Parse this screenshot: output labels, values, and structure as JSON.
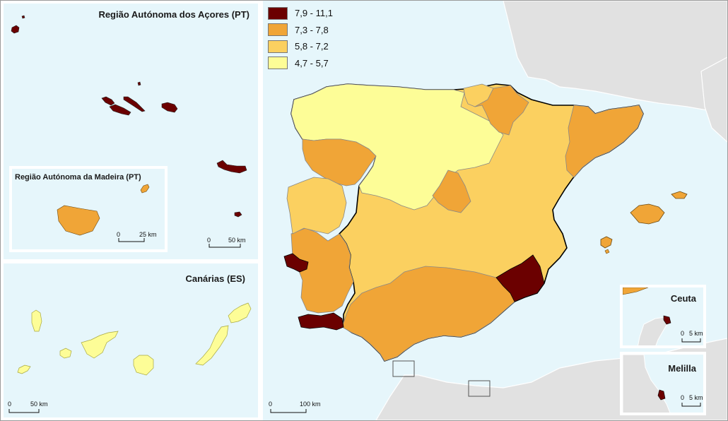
{
  "map": {
    "panels": {
      "azores": {
        "title": "Região Autónoma dos Açores (PT)",
        "scale_zero": "0",
        "scale_end": "50 km"
      },
      "madeira": {
        "title": "Região Autónoma da Madeira (PT)",
        "scale_zero": "0",
        "scale_end": "25 km"
      },
      "canarias": {
        "title": "Canárias (ES)",
        "scale_zero": "0",
        "scale_end": "50 km"
      },
      "ceuta": {
        "title": "Ceuta",
        "scale_zero": "0",
        "scale_end": "5 km"
      },
      "melilla": {
        "title": "Melilla",
        "scale_zero": "0",
        "scale_end": "5 km"
      },
      "main": {
        "scale_zero": "0",
        "scale_end": "100 km"
      }
    },
    "legend": [
      {
        "label": "7,9 - 11,1",
        "color": "#6b0000"
      },
      {
        "label": "7,3 - 7,8",
        "color": "#f0a537"
      },
      {
        "label": "5,8 - 7,2",
        "color": "#fbd060"
      },
      {
        "label": "4,7 - 5,7",
        "color": "#fdfd97"
      }
    ],
    "colors": {
      "sea": "#e6f6fb",
      "land_outside": "#e1e1e1",
      "border": "#000000"
    }
  }
}
